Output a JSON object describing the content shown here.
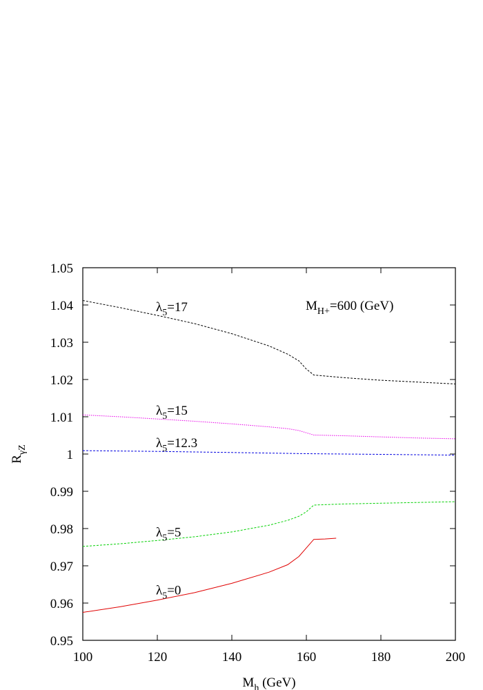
{
  "chart_data": {
    "type": "line",
    "title": "",
    "xlabel": {
      "main": "M",
      "sub": "h",
      "rest": " (GeV)"
    },
    "ylabel": {
      "main": "R",
      "sub": "γZ"
    },
    "xlim": [
      100,
      200
    ],
    "ylim": [
      0.95,
      1.05
    ],
    "x_ticks": [
      "100",
      "120",
      "140",
      "160",
      "180",
      "200"
    ],
    "y_ticks": [
      "0.95",
      "0.96",
      "0.97",
      "0.98",
      "0.99",
      "1",
      "1.01",
      "1.02",
      "1.03",
      "1.04",
      "1.05"
    ],
    "grid": false,
    "annotation": {
      "main": "M",
      "sub": "H+",
      "rest": "=600 (GeV)"
    },
    "series": [
      {
        "name": {
          "main": "λ",
          "sub": "5",
          "rest": "=17"
        },
        "color": "#000000",
        "dash": "dashed",
        "x": [
          100,
          110,
          120,
          130,
          140,
          150,
          155,
          158,
          160,
          162,
          170,
          180,
          190,
          200
        ],
        "y": [
          1.0412,
          1.0393,
          1.0372,
          1.035,
          1.0323,
          1.029,
          1.0268,
          1.025,
          1.0228,
          1.0212,
          1.0205,
          1.0198,
          1.0193,
          1.0188
        ]
      },
      {
        "name": {
          "main": "λ",
          "sub": "5",
          "rest": "=15"
        },
        "color": "#e800e8",
        "dash": "dotted",
        "x": [
          100,
          110,
          120,
          130,
          140,
          150,
          155,
          158,
          160,
          162,
          170,
          180,
          190,
          200
        ],
        "y": [
          1.0105,
          1.01,
          1.0094,
          1.0088,
          1.0081,
          1.0073,
          1.0068,
          1.0063,
          1.0057,
          1.0051,
          1.0049,
          1.0046,
          1.0043,
          1.0041
        ]
      },
      {
        "name": {
          "main": "λ",
          "sub": "5",
          "rest": "=12.3"
        },
        "color": "#0000e0",
        "dash": "dashed",
        "x": [
          100,
          120,
          140,
          160,
          180,
          200
        ],
        "y": [
          1.0009,
          1.0007,
          1.0004,
          1.0001,
          0.9999,
          0.9997
        ]
      },
      {
        "name": {
          "main": "λ",
          "sub": "5",
          "rest": "=5"
        },
        "color": "#00d000",
        "dash": "dashed",
        "x": [
          100,
          110,
          120,
          130,
          140,
          150,
          155,
          158,
          160,
          162,
          170,
          180,
          190,
          200
        ],
        "y": [
          0.9752,
          0.9759,
          0.9768,
          0.9778,
          0.9791,
          0.9809,
          0.9822,
          0.9833,
          0.9845,
          0.9863,
          0.9866,
          0.9868,
          0.987,
          0.9872
        ]
      },
      {
        "name": {
          "main": "λ",
          "sub": "5",
          "rest": "=0"
        },
        "color": "#e00000",
        "dash": "solid",
        "x": [
          100,
          110,
          120,
          130,
          140,
          150,
          155,
          158,
          160,
          162,
          165,
          168
        ],
        "y": [
          0.9575,
          0.959,
          0.9608,
          0.9628,
          0.9653,
          0.9683,
          0.9703,
          0.9725,
          0.9748,
          0.9771,
          0.9772,
          0.9774
        ]
      }
    ]
  }
}
